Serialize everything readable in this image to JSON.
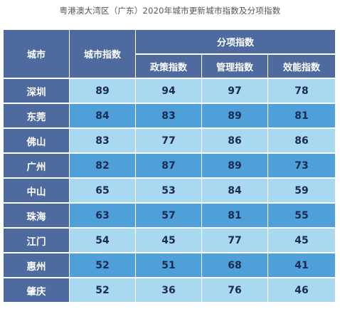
{
  "caption": "粤港澳大湾区（广东）2020年城市更新城市指数及分项指数",
  "headers": {
    "city": "城市",
    "index": "城市指数",
    "group": "分项指数",
    "sub": [
      "政策指数",
      "管理指数",
      "效能指数"
    ]
  },
  "rows": [
    {
      "city": "深圳",
      "index": "89",
      "policy": "94",
      "management": "97",
      "efficiency": "78"
    },
    {
      "city": "东莞",
      "index": "84",
      "policy": "83",
      "management": "89",
      "efficiency": "81"
    },
    {
      "city": "佛山",
      "index": "83",
      "policy": "77",
      "management": "86",
      "efficiency": "86"
    },
    {
      "city": "广州",
      "index": "82",
      "policy": "87",
      "management": "89",
      "efficiency": "73"
    },
    {
      "city": "中山",
      "index": "65",
      "policy": "53",
      "management": "84",
      "efficiency": "59"
    },
    {
      "city": "珠海",
      "index": "63",
      "policy": "57",
      "management": "81",
      "efficiency": "55"
    },
    {
      "city": "江门",
      "index": "54",
      "policy": "45",
      "management": "77",
      "efficiency": "45"
    },
    {
      "city": "惠州",
      "index": "52",
      "policy": "51",
      "management": "68",
      "efficiency": "41"
    },
    {
      "city": "肇庆",
      "index": "52",
      "policy": "36",
      "management": "76",
      "efficiency": "46"
    }
  ],
  "colors": {
    "header": "#4f6a9f",
    "row_light": "#a9d8f1",
    "row_dark": "#4f9fd9",
    "value_text": "#1b2a52"
  }
}
